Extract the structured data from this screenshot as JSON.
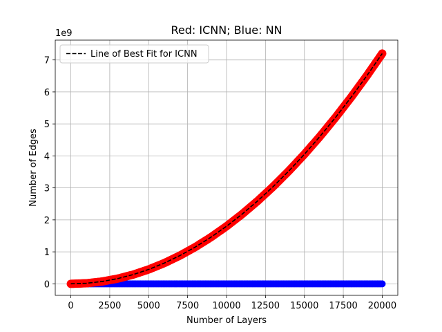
{
  "chart_data": {
    "type": "scatter",
    "title": "Red: ICNN; Blue: NN",
    "xlabel": "Number of Layers",
    "ylabel": "Number of Edges",
    "y_multiplier_label": "1e9",
    "xlim": [
      -1000,
      21000
    ],
    "ylim": [
      -0.36,
      7.62
    ],
    "x_ticks": [
      0,
      2500,
      5000,
      7500,
      10000,
      12500,
      15000,
      17500,
      20000
    ],
    "x_tick_labels": [
      "0",
      "2500",
      "5000",
      "7500",
      "10000",
      "12500",
      "15000",
      "17500",
      "20000"
    ],
    "y_ticks": [
      0,
      1,
      2,
      3,
      4,
      5,
      6,
      7
    ],
    "y_tick_labels": [
      "0",
      "1",
      "2",
      "3",
      "4",
      "5",
      "6",
      "7"
    ],
    "grid": true,
    "legend": {
      "position": "top-left",
      "entries": [
        {
          "label": "Line of Best Fit for ICNN",
          "style": "dashed",
          "color": "#000000"
        }
      ]
    },
    "series": [
      {
        "kind": "scatter",
        "color": "#ff0000",
        "x": [
          0,
          1000,
          2000,
          3000,
          4000,
          5000,
          6000,
          7000,
          8000,
          9000,
          10000,
          11000,
          12000,
          13000,
          14000,
          15000,
          16000,
          17000,
          18000,
          19000,
          20000
        ],
        "y": [
          0,
          0.018,
          0.072,
          0.162,
          0.288,
          0.45,
          0.648,
          0.882,
          1.152,
          1.458,
          1.8,
          2.178,
          2.592,
          3.042,
          3.528,
          4.05,
          4.608,
          5.202,
          5.832,
          6.498,
          7.2
        ]
      },
      {
        "kind": "scatter",
        "color": "#0000ff",
        "x": [
          0,
          20000
        ],
        "y": [
          0,
          0
        ]
      },
      {
        "kind": "line",
        "name": "Line of Best Fit for ICNN",
        "color": "#000000",
        "dash": true,
        "x": [
          0,
          1000,
          2000,
          3000,
          4000,
          5000,
          6000,
          7000,
          8000,
          9000,
          10000,
          11000,
          12000,
          13000,
          14000,
          15000,
          16000,
          17000,
          18000,
          19000,
          20000
        ],
        "y": [
          0,
          0.018,
          0.072,
          0.162,
          0.288,
          0.45,
          0.648,
          0.882,
          1.152,
          1.458,
          1.8,
          2.178,
          2.592,
          3.042,
          3.528,
          4.05,
          4.608,
          5.202,
          5.832,
          6.498,
          7.2
        ]
      }
    ]
  }
}
